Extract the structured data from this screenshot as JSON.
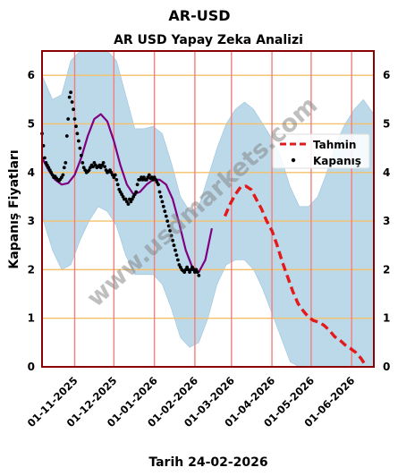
{
  "header": {
    "title": "AR-USD",
    "subtitle": "AR USD Yapay Zeka Analizi",
    "xlabel": "Tarih 24-02-2026",
    "ylabel": "Kapanış Fiyatları",
    "watermark": "www.usdmarkets.com"
  },
  "legend": {
    "forecast_label": "Tahmin",
    "close_label": "Kapanış"
  },
  "colors": {
    "band": "#bcd9ea",
    "smooth": "#800080",
    "forecast": "#e31a1c",
    "close": "#000000",
    "frame": "#8b0000",
    "vgrid": "#f08080",
    "hgrid": "#f5c06b"
  },
  "chart_data": {
    "type": "line",
    "title": "AR USD Yapay Zeka Analizi",
    "xlabel": "Tarih 24-02-2026",
    "ylabel": "Kapanış Fiyatları",
    "xlim": [
      "2025-10-07",
      "2026-06-18"
    ],
    "ylim": [
      0,
      6.5
    ],
    "yticks": [
      0,
      1,
      2,
      3,
      4,
      5,
      6
    ],
    "xticks": [
      "2025-11-01",
      "2025-12-01",
      "2026-01-01",
      "2026-02-01",
      "2026-03-01",
      "2026-04-01",
      "2026-05-01",
      "2026-06-01"
    ],
    "xtick_labels": [
      "01-11-2025",
      "01-12-2025",
      "01-01-2026",
      "01-02-2026",
      "01-03-2026",
      "01-04-2026",
      "01-05-2026",
      "01-06-2026"
    ],
    "grid": true,
    "legend_position": "right",
    "series": [
      {
        "name": "Kapanış",
        "kind": "scatter",
        "points": [
          [
            "2025-10-07",
            4.8
          ],
          [
            "2025-10-08",
            4.55
          ],
          [
            "2025-10-09",
            4.3
          ],
          [
            "2025-10-10",
            4.2
          ],
          [
            "2025-10-11",
            4.15
          ],
          [
            "2025-10-12",
            4.1
          ],
          [
            "2025-10-13",
            4.05
          ],
          [
            "2025-10-14",
            4.0
          ],
          [
            "2025-10-15",
            3.95
          ],
          [
            "2025-10-16",
            3.9
          ],
          [
            "2025-10-17",
            3.92
          ],
          [
            "2025-10-18",
            3.88
          ],
          [
            "2025-10-19",
            3.85
          ],
          [
            "2025-10-20",
            3.83
          ],
          [
            "2025-10-21",
            3.86
          ],
          [
            "2025-10-22",
            3.9
          ],
          [
            "2025-10-23",
            3.95
          ],
          [
            "2025-10-24",
            4.1
          ],
          [
            "2025-10-25",
            4.2
          ],
          [
            "2025-10-26",
            4.75
          ],
          [
            "2025-10-27",
            5.1
          ],
          [
            "2025-10-28",
            5.55
          ],
          [
            "2025-10-29",
            5.65
          ],
          [
            "2025-10-30",
            5.45
          ],
          [
            "2025-10-31",
            5.3
          ],
          [
            "2025-11-01",
            5.1
          ],
          [
            "2025-11-02",
            4.95
          ],
          [
            "2025-11-03",
            4.8
          ],
          [
            "2025-11-04",
            4.65
          ],
          [
            "2025-11-05",
            4.5
          ],
          [
            "2025-11-06",
            4.35
          ],
          [
            "2025-11-07",
            4.2
          ],
          [
            "2025-11-08",
            4.1
          ],
          [
            "2025-11-09",
            4.05
          ],
          [
            "2025-11-10",
            4.0
          ],
          [
            "2025-11-11",
            4.02
          ],
          [
            "2025-11-12",
            4.05
          ],
          [
            "2025-11-13",
            4.1
          ],
          [
            "2025-11-14",
            4.15
          ],
          [
            "2025-11-15",
            4.12
          ],
          [
            "2025-11-16",
            4.2
          ],
          [
            "2025-11-17",
            4.15
          ],
          [
            "2025-11-18",
            4.1
          ],
          [
            "2025-11-19",
            4.12
          ],
          [
            "2025-11-20",
            4.15
          ],
          [
            "2025-11-21",
            4.1
          ],
          [
            "2025-11-22",
            4.15
          ],
          [
            "2025-11-23",
            4.2
          ],
          [
            "2025-11-24",
            4.12
          ],
          [
            "2025-11-25",
            4.05
          ],
          [
            "2025-11-26",
            4.0
          ],
          [
            "2025-11-27",
            4.02
          ],
          [
            "2025-11-28",
            4.05
          ],
          [
            "2025-11-29",
            4.0
          ],
          [
            "2025-11-30",
            3.95
          ],
          [
            "2025-12-01",
            3.9
          ],
          [
            "2025-12-02",
            3.95
          ],
          [
            "2025-12-03",
            3.85
          ],
          [
            "2025-12-04",
            3.75
          ],
          [
            "2025-12-05",
            3.65
          ],
          [
            "2025-12-06",
            3.6
          ],
          [
            "2025-12-07",
            3.55
          ],
          [
            "2025-12-08",
            3.5
          ],
          [
            "2025-12-09",
            3.45
          ],
          [
            "2025-12-10",
            3.45
          ],
          [
            "2025-12-11",
            3.4
          ],
          [
            "2025-12-12",
            3.35
          ],
          [
            "2025-12-13",
            3.45
          ],
          [
            "2025-12-14",
            3.4
          ],
          [
            "2025-12-15",
            3.45
          ],
          [
            "2025-12-16",
            3.5
          ],
          [
            "2025-12-17",
            3.55
          ],
          [
            "2025-12-18",
            3.6
          ],
          [
            "2025-12-19",
            3.75
          ],
          [
            "2025-12-20",
            3.85
          ],
          [
            "2025-12-21",
            3.85
          ],
          [
            "2025-12-22",
            3.9
          ],
          [
            "2025-12-23",
            3.85
          ],
          [
            "2025-12-24",
            3.9
          ],
          [
            "2025-12-25",
            3.85
          ],
          [
            "2025-12-26",
            3.85
          ],
          [
            "2025-12-27",
            3.9
          ],
          [
            "2025-12-28",
            3.95
          ],
          [
            "2025-12-29",
            3.88
          ],
          [
            "2025-12-30",
            3.9
          ],
          [
            "2025-12-31",
            3.85
          ],
          [
            "2026-01-01",
            3.9
          ],
          [
            "2026-01-02",
            3.85
          ],
          [
            "2026-01-03",
            3.8
          ],
          [
            "2026-01-04",
            3.75
          ],
          [
            "2026-01-05",
            3.6
          ],
          [
            "2026-01-06",
            3.5
          ],
          [
            "2026-01-07",
            3.4
          ],
          [
            "2026-01-08",
            3.3
          ],
          [
            "2026-01-09",
            3.2
          ],
          [
            "2026-01-10",
            3.1
          ],
          [
            "2026-01-11",
            3.0
          ],
          [
            "2026-01-12",
            2.9
          ],
          [
            "2026-01-13",
            2.8
          ],
          [
            "2026-01-14",
            2.7
          ],
          [
            "2026-01-15",
            2.6
          ],
          [
            "2026-01-16",
            2.5
          ],
          [
            "2026-01-17",
            2.4
          ],
          [
            "2026-01-18",
            2.3
          ],
          [
            "2026-01-19",
            2.2
          ],
          [
            "2026-01-20",
            2.1
          ],
          [
            "2026-01-21",
            2.05
          ],
          [
            "2026-01-22",
            2.0
          ],
          [
            "2026-01-23",
            1.98
          ],
          [
            "2026-01-24",
            1.95
          ],
          [
            "2026-01-25",
            2.0
          ],
          [
            "2026-01-26",
            2.05
          ],
          [
            "2026-01-27",
            2.0
          ],
          [
            "2026-01-28",
            1.95
          ],
          [
            "2026-01-29",
            2.0
          ],
          [
            "2026-01-30",
            2.05
          ],
          [
            "2026-01-31",
            2.0
          ],
          [
            "2026-02-01",
            1.95
          ],
          [
            "2026-02-02",
            2.0
          ],
          [
            "2026-02-03",
            1.95
          ],
          [
            "2026-02-04",
            1.88
          ]
        ]
      },
      {
        "name": "",
        "kind": "line",
        "points": [
          [
            "2025-10-07",
            4.3
          ],
          [
            "2025-10-12",
            4.05
          ],
          [
            "2025-10-17",
            3.85
          ],
          [
            "2025-10-22",
            3.75
          ],
          [
            "2025-10-27",
            3.78
          ],
          [
            "2025-11-01",
            3.95
          ],
          [
            "2025-11-06",
            4.3
          ],
          [
            "2025-11-11",
            4.75
          ],
          [
            "2025-11-16",
            5.1
          ],
          [
            "2025-11-21",
            5.2
          ],
          [
            "2025-11-26",
            5.05
          ],
          [
            "2025-12-01",
            4.65
          ],
          [
            "2025-12-06",
            4.15
          ],
          [
            "2025-12-11",
            3.75
          ],
          [
            "2025-12-16",
            3.55
          ],
          [
            "2025-12-21",
            3.6
          ],
          [
            "2025-12-26",
            3.75
          ],
          [
            "2025-12-31",
            3.85
          ],
          [
            "2026-01-05",
            3.85
          ],
          [
            "2026-01-10",
            3.75
          ],
          [
            "2026-01-15",
            3.45
          ],
          [
            "2026-01-20",
            2.95
          ],
          [
            "2026-01-25",
            2.4
          ],
          [
            "2026-01-30",
            2.05
          ],
          [
            "2026-02-04",
            1.95
          ],
          [
            "2026-02-09",
            2.2
          ],
          [
            "2026-02-14",
            2.85
          ]
        ]
      },
      {
        "name": "Tahmin",
        "kind": "dashed-line",
        "points": [
          [
            "2026-02-24",
            3.1
          ],
          [
            "2026-02-28",
            3.35
          ],
          [
            "2026-03-04",
            3.55
          ],
          [
            "2026-03-08",
            3.7
          ],
          [
            "2026-03-12",
            3.72
          ],
          [
            "2026-03-16",
            3.65
          ],
          [
            "2026-03-20",
            3.45
          ],
          [
            "2026-03-24",
            3.25
          ],
          [
            "2026-03-28",
            3.0
          ],
          [
            "2026-04-01",
            2.8
          ],
          [
            "2026-04-05",
            2.5
          ],
          [
            "2026-04-09",
            2.15
          ],
          [
            "2026-04-13",
            1.85
          ],
          [
            "2026-04-17",
            1.55
          ],
          [
            "2026-04-21",
            1.3
          ],
          [
            "2026-04-25",
            1.15
          ],
          [
            "2026-04-29",
            1.02
          ],
          [
            "2026-05-03",
            0.95
          ],
          [
            "2026-05-07",
            0.92
          ],
          [
            "2026-05-11",
            0.85
          ],
          [
            "2026-05-15",
            0.75
          ],
          [
            "2026-05-19",
            0.62
          ],
          [
            "2026-05-23",
            0.55
          ],
          [
            "2026-05-27",
            0.45
          ],
          [
            "2026-05-31",
            0.38
          ],
          [
            "2026-06-04",
            0.3
          ],
          [
            "2026-06-08",
            0.18
          ],
          [
            "2026-06-12",
            0.02
          ]
        ]
      },
      {
        "name": "",
        "kind": "band",
        "upper": [
          [
            "2025-10-07",
            6.0
          ],
          [
            "2025-10-15",
            5.5
          ],
          [
            "2025-10-22",
            5.6
          ],
          [
            "2025-10-29",
            6.3
          ],
          [
            "2025-11-05",
            6.5
          ],
          [
            "2025-11-12",
            6.5
          ],
          [
            "2025-11-19",
            6.5
          ],
          [
            "2025-11-26",
            6.5
          ],
          [
            "2025-12-03",
            6.3
          ],
          [
            "2025-12-10",
            5.6
          ],
          [
            "2025-12-17",
            4.9
          ],
          [
            "2025-12-24",
            4.9
          ],
          [
            "2025-12-31",
            4.95
          ],
          [
            "2026-01-07",
            4.8
          ],
          [
            "2026-01-14",
            4.2
          ],
          [
            "2026-01-21",
            3.5
          ],
          [
            "2026-01-28",
            3.2
          ],
          [
            "2026-02-04",
            3.3
          ],
          [
            "2026-02-11",
            3.9
          ],
          [
            "2026-02-18",
            4.5
          ],
          [
            "2026-02-25",
            5.0
          ],
          [
            "2026-03-04",
            5.3
          ],
          [
            "2026-03-11",
            5.45
          ],
          [
            "2026-03-18",
            5.3
          ],
          [
            "2026-03-25",
            5.0
          ],
          [
            "2026-04-01",
            4.7
          ],
          [
            "2026-04-08",
            4.3
          ],
          [
            "2026-04-15",
            3.7
          ],
          [
            "2026-04-22",
            3.3
          ],
          [
            "2026-04-29",
            3.3
          ],
          [
            "2026-05-06",
            3.5
          ],
          [
            "2026-05-13",
            4.0
          ],
          [
            "2026-05-20",
            4.6
          ],
          [
            "2026-05-27",
            5.0
          ],
          [
            "2026-06-03",
            5.3
          ],
          [
            "2026-06-10",
            5.5
          ],
          [
            "2026-06-18",
            5.2
          ]
        ],
        "lower": [
          [
            "2025-10-07",
            3.1
          ],
          [
            "2025-10-15",
            2.4
          ],
          [
            "2025-10-22",
            2.0
          ],
          [
            "2025-10-29",
            2.1
          ],
          [
            "2025-11-05",
            2.6
          ],
          [
            "2025-11-12",
            3.0
          ],
          [
            "2025-11-19",
            3.3
          ],
          [
            "2025-11-26",
            3.2
          ],
          [
            "2025-12-03",
            2.9
          ],
          [
            "2025-12-10",
            2.3
          ],
          [
            "2025-12-17",
            1.9
          ],
          [
            "2025-12-24",
            1.9
          ],
          [
            "2025-12-31",
            1.9
          ],
          [
            "2026-01-07",
            1.7
          ],
          [
            "2026-01-14",
            1.2
          ],
          [
            "2026-01-21",
            0.6
          ],
          [
            "2026-01-28",
            0.4
          ],
          [
            "2026-02-04",
            0.5
          ],
          [
            "2026-02-11",
            1.0
          ],
          [
            "2026-02-18",
            1.7
          ],
          [
            "2026-02-25",
            2.1
          ],
          [
            "2026-03-04",
            2.2
          ],
          [
            "2026-03-11",
            2.2
          ],
          [
            "2026-03-18",
            2.0
          ],
          [
            "2026-03-25",
            1.6
          ],
          [
            "2026-04-01",
            1.1
          ],
          [
            "2026-04-08",
            0.6
          ],
          [
            "2026-04-15",
            0.1
          ],
          [
            "2026-04-22",
            0.0
          ],
          [
            "2026-04-29",
            0.0
          ],
          [
            "2026-05-06",
            0.0
          ],
          [
            "2026-05-13",
            0.0
          ],
          [
            "2026-05-20",
            0.0
          ],
          [
            "2026-05-27",
            0.0
          ],
          [
            "2026-06-03",
            0.0
          ],
          [
            "2026-06-10",
            0.0
          ],
          [
            "2026-06-18",
            0.0
          ]
        ]
      }
    ]
  }
}
